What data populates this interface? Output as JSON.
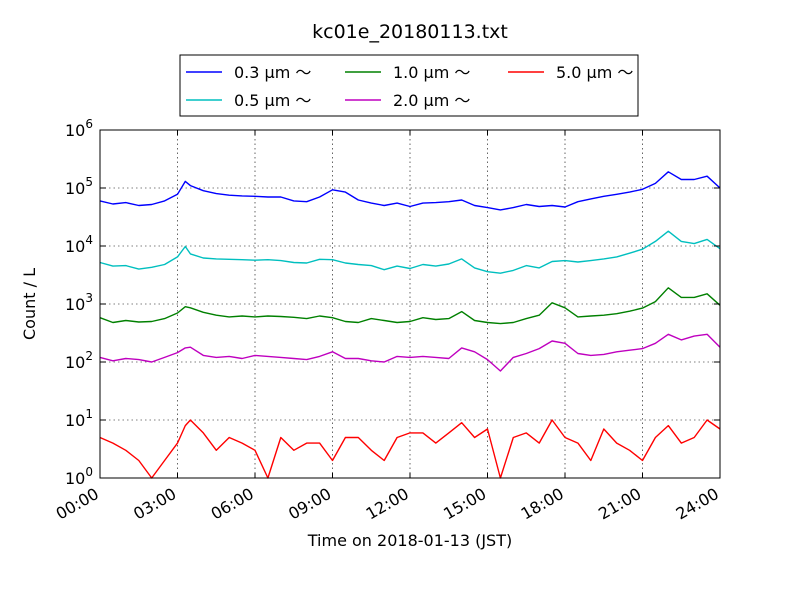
{
  "chart_data": {
    "type": "line",
    "title": "kc01e_20180113.txt",
    "xlabel": "Time on 2018-01-13 (JST)",
    "ylabel": "Count / L",
    "yscale": "log",
    "ylim": [
      1,
      1000000
    ],
    "xlim": [
      "00:00",
      "24:00"
    ],
    "grid": true,
    "legend_position": "top-center",
    "x_tick_labels": [
      "00:00",
      "03:00",
      "06:00",
      "09:00",
      "12:00",
      "15:00",
      "18:00",
      "21:00",
      "24:00"
    ],
    "y_tick_labels": [
      {
        "base": "10",
        "exp": "0"
      },
      {
        "base": "10",
        "exp": "1"
      },
      {
        "base": "10",
        "exp": "2"
      },
      {
        "base": "10",
        "exp": "3"
      },
      {
        "base": "10",
        "exp": "4"
      },
      {
        "base": "10",
        "exp": "5"
      },
      {
        "base": "10",
        "exp": "6"
      }
    ],
    "x_hours": [
      0,
      0.5,
      1,
      1.5,
      2,
      2.5,
      3,
      3.3,
      3.5,
      4,
      4.5,
      5,
      5.5,
      6,
      6.5,
      7,
      7.5,
      8,
      8.5,
      9,
      9.5,
      10,
      10.5,
      11,
      11.5,
      12,
      12.5,
      13,
      13.5,
      14,
      14.5,
      15,
      15.5,
      16,
      16.5,
      17,
      17.5,
      18,
      18.5,
      19,
      19.5,
      20,
      20.5,
      21,
      21.5,
      22,
      22.5,
      23,
      23.5,
      24
    ],
    "series": [
      {
        "name": "0.3 μm ～",
        "color": "#0000ff",
        "values": [
          60000,
          53000,
          56000,
          50000,
          52000,
          60000,
          78000,
          130000,
          110000,
          90000,
          80000,
          75000,
          73000,
          72000,
          70000,
          70000,
          60000,
          58000,
          70000,
          93000,
          85000,
          62000,
          55000,
          50000,
          55000,
          48000,
          55000,
          56000,
          58000,
          62000,
          50000,
          46000,
          42000,
          46000,
          52000,
          48000,
          50000,
          47000,
          58000,
          65000,
          72000,
          78000,
          85000,
          95000,
          120000,
          190000,
          140000,
          140000,
          160000,
          100000
        ]
      },
      {
        "name": "0.5 μm ～",
        "color": "#00bfbf",
        "values": [
          5200,
          4500,
          4600,
          4000,
          4300,
          4800,
          6500,
          9800,
          7300,
          6200,
          6000,
          5900,
          5800,
          5700,
          5800,
          5600,
          5200,
          5100,
          5900,
          5800,
          5100,
          4800,
          4600,
          3900,
          4500,
          4100,
          4800,
          4500,
          4900,
          6000,
          4200,
          3600,
          3400,
          3800,
          4600,
          4200,
          5400,
          5600,
          5300,
          5600,
          6000,
          6500,
          7500,
          8800,
          12000,
          18000,
          12000,
          11000,
          13000,
          9000
        ]
      },
      {
        "name": "1.0 μm ～",
        "color": "#008000",
        "values": [
          580,
          480,
          520,
          490,
          500,
          560,
          700,
          900,
          860,
          720,
          640,
          600,
          620,
          600,
          620,
          610,
          590,
          560,
          620,
          580,
          500,
          480,
          560,
          520,
          480,
          500,
          580,
          540,
          560,
          740,
          520,
          480,
          460,
          480,
          560,
          640,
          1050,
          860,
          600,
          620,
          640,
          680,
          750,
          850,
          1100,
          1900,
          1300,
          1300,
          1500,
          950
        ]
      },
      {
        "name": "2.0 μm ～",
        "color": "#bf00bf",
        "values": [
          120,
          105,
          115,
          110,
          100,
          120,
          145,
          175,
          180,
          130,
          120,
          125,
          115,
          130,
          125,
          120,
          115,
          110,
          125,
          150,
          115,
          115,
          105,
          100,
          125,
          120,
          125,
          120,
          115,
          175,
          150,
          110,
          70,
          120,
          140,
          170,
          230,
          210,
          140,
          130,
          135,
          150,
          160,
          170,
          210,
          300,
          240,
          280,
          300,
          180
        ]
      },
      {
        "name": "5.0 μm ～",
        "color": "#ff0000",
        "values": [
          5,
          4,
          3,
          2,
          1,
          2,
          4,
          8,
          10,
          6,
          3,
          5,
          4,
          3,
          1,
          5,
          3,
          4,
          4,
          2,
          5,
          5,
          3,
          2,
          5,
          6,
          6,
          4,
          6,
          9,
          5,
          7,
          1,
          5,
          6,
          4,
          10,
          5,
          4,
          2,
          7,
          4,
          3,
          2,
          5,
          8,
          4,
          5,
          10,
          7
        ]
      }
    ]
  }
}
